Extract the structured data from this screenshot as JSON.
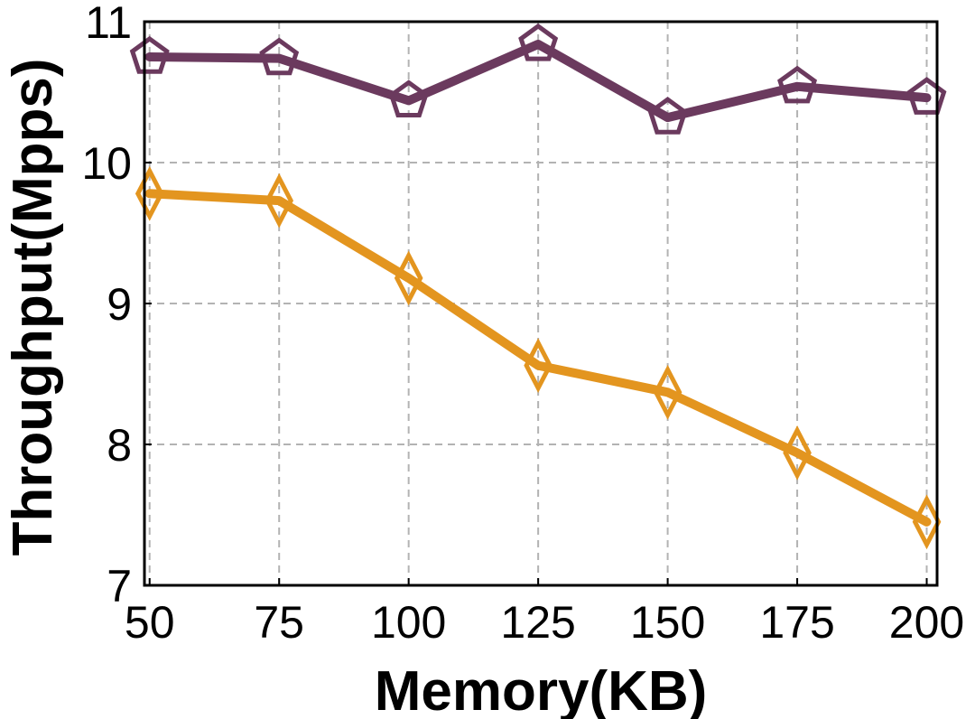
{
  "chart_data": {
    "type": "line",
    "title": "",
    "xlabel": "Memory(KB)",
    "ylabel": "Throughput(Mpps)",
    "x": [
      50,
      75,
      100,
      125,
      150,
      175,
      200
    ],
    "xticks": [
      "50",
      "75",
      "100",
      "125",
      "150",
      "175",
      "200"
    ],
    "yticks": [
      "7",
      "8",
      "9",
      "10",
      "11"
    ],
    "ylim": [
      7,
      11
    ],
    "xlim": [
      49,
      202
    ],
    "grid": true,
    "series": [
      {
        "values": [
          10.75,
          10.74,
          10.44,
          10.84,
          10.32,
          10.54,
          10.46
        ],
        "color": "#6b3a5e",
        "marker": "pentagon"
      },
      {
        "values": [
          9.78,
          9.73,
          9.18,
          8.56,
          8.37,
          7.94,
          7.45
        ],
        "color": "#e3951f",
        "marker": "diamond"
      }
    ]
  }
}
